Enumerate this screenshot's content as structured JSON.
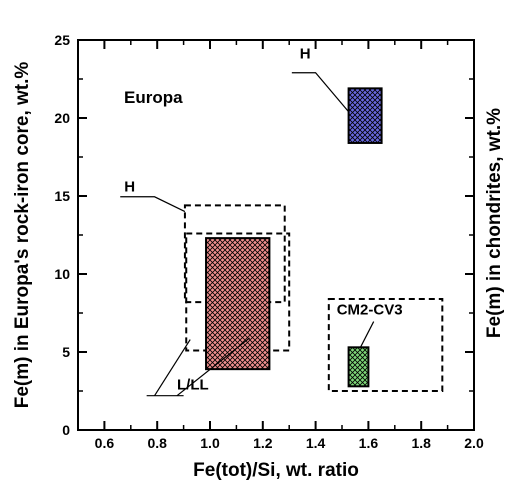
{
  "chart_data": {
    "type": "area",
    "title": "",
    "panel_label": "Europa",
    "xlabel": "Fe(tot)/Si, wt. ratio",
    "ylabel_left": "Fe(m) in Europa's rock-iron core, wt.%",
    "ylabel_right": "Fe(m)  in chondrites, wt.%",
    "xlim": [
      0.5,
      2.0
    ],
    "ylim": [
      0,
      25
    ],
    "x_ticks": [
      0.6,
      0.8,
      1.0,
      1.2,
      1.4,
      1.6,
      1.8,
      2.0
    ],
    "x_tick_labels": [
      "0.6",
      "0.8",
      "1.0",
      "1.2",
      "1.4",
      "1.6",
      "1.8",
      "2.0"
    ],
    "y_ticks": [
      0,
      5,
      10,
      15,
      20,
      25
    ],
    "y_tick_labels": [
      "0",
      "5",
      "10",
      "15",
      "20",
      "25"
    ],
    "grid": false,
    "legend": "none",
    "regions": [
      {
        "label": "H",
        "kind": "europa-core",
        "style": "dashed-outline",
        "x": [
          0.905,
          1.283
        ],
        "y": [
          8.2,
          14.4
        ]
      },
      {
        "label": "L/LL",
        "kind": "europa-core",
        "style": "dashed-outline",
        "x": [
          0.91,
          1.3
        ],
        "y": [
          5.1,
          12.6
        ]
      },
      {
        "label": "L/LL",
        "kind": "chondrite",
        "style": "hatched",
        "fill": "#f2908f",
        "x": [
          0.985,
          1.225
        ],
        "y": [
          3.9,
          12.3
        ]
      },
      {
        "label": "H",
        "kind": "chondrite",
        "style": "hatched",
        "fill": "#6868e0",
        "x": [
          1.525,
          1.65
        ],
        "y": [
          18.4,
          21.9
        ]
      },
      {
        "label": "CM2-CV3",
        "kind": "europa-core",
        "style": "dashed-outline",
        "x": [
          1.45,
          1.88
        ],
        "y": [
          2.5,
          8.4
        ]
      },
      {
        "label": "CM2-CV3",
        "kind": "chondrite",
        "style": "hatched",
        "fill": "#7ed878",
        "x": [
          1.525,
          1.6
        ],
        "y": [
          2.8,
          5.3
        ]
      }
    ],
    "annotations": [
      {
        "text": "H",
        "text_at": [
          1.34,
          23.8
        ],
        "line": [
          [
            1.31,
            22.9
          ],
          [
            1.4,
            22.9
          ],
          [
            1.525,
            20.4
          ]
        ]
      },
      {
        "text": "H",
        "text_at": [
          0.675,
          15.3
        ],
        "line": [
          [
            0.66,
            14.95
          ],
          [
            0.79,
            14.95
          ],
          [
            0.905,
            14.0
          ]
        ]
      },
      {
        "text": "L/LL",
        "text_at": [
          0.875,
          2.6
        ],
        "line": [
          [
            0.76,
            2.2
          ],
          [
            0.9,
            2.2
          ]
        ],
        "pointers": [
          [
            [
              0.79,
              2.2
            ],
            [
              0.925,
              5.8
            ]
          ],
          [
            [
              0.875,
              2.2
            ],
            [
              1.15,
              5.9
            ]
          ]
        ]
      },
      {
        "text": "CM2-CV3",
        "text_at": [
          1.48,
          7.4
        ],
        "line": [
          [
            1.62,
            6.95
          ],
          [
            1.57,
            5.3
          ]
        ]
      }
    ],
    "colors": {
      "h_box": "#6868e0",
      "lll_box": "#f2908f",
      "cm_box": "#7ed878"
    }
  }
}
